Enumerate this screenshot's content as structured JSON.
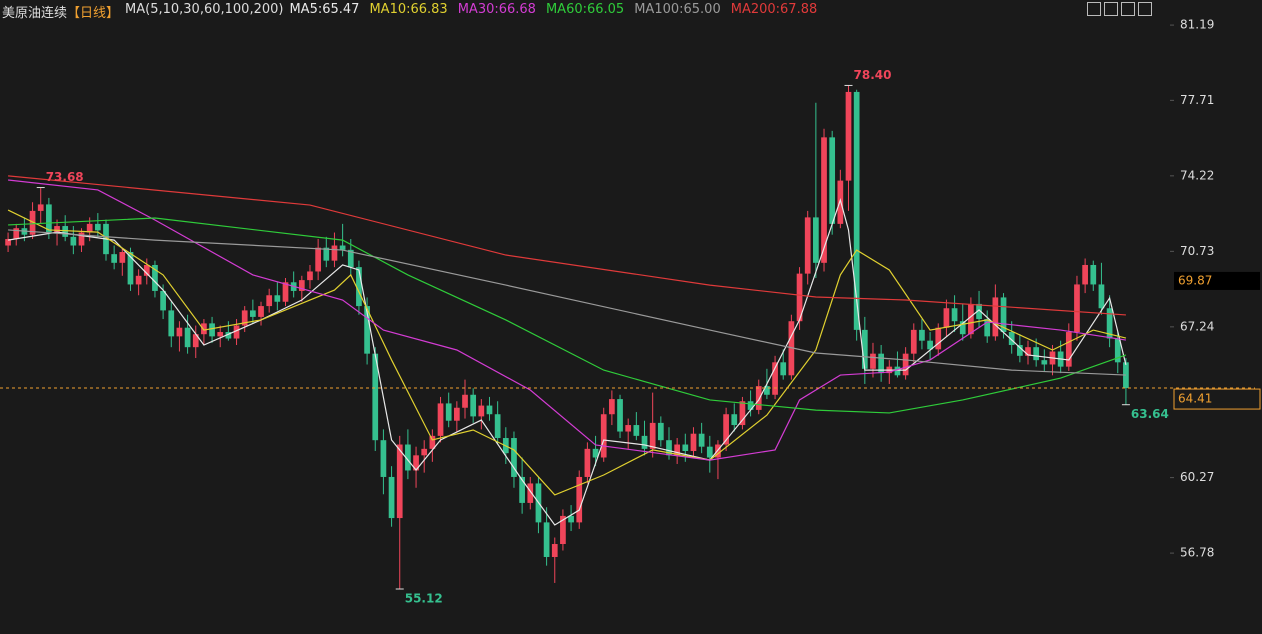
{
  "header": {
    "title": "美原油连续",
    "period": "【日线】",
    "ma_params": "MA(5,10,30,60,100,200)"
  },
  "chart_data": {
    "type": "candlestick",
    "up_color": "#f0455a",
    "down_color": "#35c08f",
    "ylim": [
      53.04,
      82.35
    ],
    "yticks": [
      81.19,
      77.71,
      74.22,
      70.73,
      67.24,
      60.27,
      56.78
    ],
    "crosshair_price": 69.87,
    "last_price": 64.41,
    "ohlc": [
      [
        71.0,
        71.6,
        70.7,
        71.3
      ],
      [
        71.3,
        72.0,
        71.0,
        71.8
      ],
      [
        71.8,
        72.3,
        71.2,
        71.5
      ],
      [
        71.5,
        73.0,
        71.3,
        72.6
      ],
      [
        72.6,
        73.68,
        72.0,
        72.9
      ],
      [
        72.9,
        73.2,
        71.3,
        71.6
      ],
      [
        71.6,
        72.2,
        71.0,
        71.9
      ],
      [
        71.9,
        72.4,
        71.2,
        71.4
      ],
      [
        71.4,
        71.9,
        70.6,
        71.0
      ],
      [
        71.0,
        71.8,
        70.7,
        71.6
      ],
      [
        71.6,
        72.3,
        71.2,
        72.0
      ],
      [
        72.0,
        72.5,
        71.4,
        71.7
      ],
      [
        72.0,
        72.2,
        70.3,
        70.6
      ],
      [
        70.6,
        71.0,
        69.9,
        70.2
      ],
      [
        70.2,
        70.9,
        69.6,
        70.7
      ],
      [
        70.7,
        70.9,
        68.9,
        69.2
      ],
      [
        69.2,
        69.9,
        68.7,
        69.6
      ],
      [
        69.6,
        70.4,
        69.2,
        70.1
      ],
      [
        70.1,
        70.3,
        68.6,
        68.9
      ],
      [
        68.9,
        69.2,
        67.6,
        68.0
      ],
      [
        68.0,
        68.4,
        66.3,
        66.8
      ],
      [
        66.8,
        67.5,
        66.1,
        67.2
      ],
      [
        67.2,
        67.8,
        66.0,
        66.3
      ],
      [
        66.3,
        67.3,
        65.8,
        66.9
      ],
      [
        66.9,
        67.6,
        66.4,
        67.4
      ],
      [
        67.4,
        67.7,
        66.5,
        66.8
      ],
      [
        66.8,
        67.3,
        66.3,
        67.0
      ],
      [
        67.0,
        67.5,
        66.6,
        66.7
      ],
      [
        66.7,
        67.6,
        66.4,
        67.3
      ],
      [
        67.3,
        68.2,
        67.0,
        68.0
      ],
      [
        68.0,
        68.5,
        67.4,
        67.7
      ],
      [
        67.7,
        68.4,
        67.3,
        68.2
      ],
      [
        68.2,
        69.0,
        67.9,
        68.7
      ],
      [
        68.7,
        69.3,
        68.0,
        68.4
      ],
      [
        68.4,
        69.5,
        68.2,
        69.3
      ],
      [
        69.3,
        69.8,
        68.6,
        68.9
      ],
      [
        68.9,
        69.6,
        68.4,
        69.4
      ],
      [
        69.4,
        70.1,
        69.0,
        69.8
      ],
      [
        69.8,
        71.3,
        69.4,
        70.9
      ],
      [
        70.9,
        71.4,
        70.0,
        70.3
      ],
      [
        70.3,
        71.6,
        70.0,
        71.0
      ],
      [
        71.0,
        72.0,
        70.5,
        70.8
      ],
      [
        70.8,
        71.3,
        69.6,
        70.0
      ],
      [
        70.0,
        70.3,
        67.8,
        68.2
      ],
      [
        68.2,
        68.6,
        65.5,
        66.0
      ],
      [
        66.0,
        66.3,
        61.5,
        62.0
      ],
      [
        62.0,
        62.5,
        59.5,
        60.3
      ],
      [
        60.3,
        60.8,
        58.0,
        58.4
      ],
      [
        58.4,
        62.2,
        55.12,
        61.8
      ],
      [
        61.8,
        62.5,
        60.2,
        60.6
      ],
      [
        60.6,
        61.7,
        59.8,
        61.3
      ],
      [
        61.3,
        62.0,
        60.5,
        61.6
      ],
      [
        61.6,
        62.5,
        61.0,
        62.2
      ],
      [
        62.2,
        64.0,
        61.9,
        63.7
      ],
      [
        63.7,
        64.2,
        62.6,
        62.9
      ],
      [
        62.9,
        63.8,
        62.4,
        63.5
      ],
      [
        63.5,
        64.8,
        63.0,
        64.1
      ],
      [
        64.1,
        64.4,
        62.8,
        63.1
      ],
      [
        63.1,
        63.9,
        62.5,
        63.6
      ],
      [
        63.6,
        64.0,
        62.9,
        63.2
      ],
      [
        63.2,
        63.8,
        61.8,
        62.1
      ],
      [
        62.1,
        62.6,
        60.9,
        61.4
      ],
      [
        62.1,
        62.4,
        59.8,
        60.3
      ],
      [
        60.3,
        61.2,
        58.6,
        59.1
      ],
      [
        59.1,
        60.3,
        58.8,
        60.0
      ],
      [
        60.0,
        60.3,
        57.7,
        58.2
      ],
      [
        58.2,
        58.9,
        56.2,
        56.6
      ],
      [
        56.6,
        57.5,
        55.4,
        57.2
      ],
      [
        57.2,
        58.8,
        56.9,
        58.5
      ],
      [
        58.5,
        59.0,
        57.8,
        58.2
      ],
      [
        58.2,
        60.6,
        57.9,
        60.3
      ],
      [
        60.3,
        61.9,
        60.0,
        61.6
      ],
      [
        61.6,
        62.2,
        60.8,
        61.2
      ],
      [
        61.2,
        63.5,
        61.0,
        63.2
      ],
      [
        63.2,
        64.3,
        62.7,
        63.9
      ],
      [
        63.9,
        64.1,
        62.1,
        62.4
      ],
      [
        62.4,
        63.0,
        61.6,
        62.7
      ],
      [
        62.7,
        63.3,
        62.0,
        62.2
      ],
      [
        62.2,
        62.9,
        61.3,
        61.6
      ],
      [
        61.6,
        64.2,
        61.2,
        62.8
      ],
      [
        62.8,
        63.1,
        61.7,
        62.0
      ],
      [
        62.0,
        62.6,
        61.1,
        61.3
      ],
      [
        61.3,
        62.1,
        60.9,
        61.8
      ],
      [
        61.8,
        62.3,
        61.0,
        61.5
      ],
      [
        61.5,
        62.6,
        61.2,
        62.3
      ],
      [
        62.3,
        62.8,
        61.4,
        61.7
      ],
      [
        61.7,
        62.2,
        60.5,
        61.2
      ],
      [
        61.2,
        62.0,
        60.2,
        61.8
      ],
      [
        61.8,
        63.5,
        61.5,
        63.2
      ],
      [
        63.2,
        63.7,
        62.4,
        62.7
      ],
      [
        62.7,
        64.0,
        62.5,
        63.8
      ],
      [
        63.8,
        64.3,
        63.1,
        63.4
      ],
      [
        63.4,
        64.8,
        63.2,
        64.5
      ],
      [
        64.5,
        65.3,
        63.9,
        64.1
      ],
      [
        64.1,
        65.9,
        63.9,
        65.6
      ],
      [
        65.6,
        66.2,
        64.8,
        65.0
      ],
      [
        65.0,
        67.8,
        64.8,
        67.5
      ],
      [
        67.5,
        70.0,
        67.1,
        69.7
      ],
      [
        69.7,
        72.6,
        69.2,
        72.3
      ],
      [
        72.3,
        77.6,
        69.5,
        70.2
      ],
      [
        70.2,
        76.4,
        69.8,
        76.0
      ],
      [
        76.0,
        76.3,
        71.5,
        72.0
      ],
      [
        72.0,
        74.5,
        71.8,
        74.0
      ],
      [
        74.0,
        78.4,
        72.6,
        78.1
      ],
      [
        78.1,
        78.2,
        66.6,
        67.1
      ],
      [
        67.1,
        67.7,
        64.6,
        65.3
      ],
      [
        65.3,
        66.5,
        64.9,
        66.0
      ],
      [
        66.0,
        66.4,
        64.7,
        65.1
      ],
      [
        65.1,
        65.7,
        64.6,
        65.4
      ],
      [
        65.4,
        66.1,
        64.9,
        65.0
      ],
      [
        65.0,
        66.3,
        64.8,
        66.0
      ],
      [
        66.0,
        67.4,
        65.6,
        67.1
      ],
      [
        67.1,
        67.6,
        66.2,
        66.6
      ],
      [
        66.6,
        67.0,
        65.7,
        66.2
      ],
      [
        66.2,
        67.4,
        65.9,
        67.2
      ],
      [
        67.2,
        68.5,
        66.8,
        68.1
      ],
      [
        68.1,
        68.7,
        67.0,
        67.5
      ],
      [
        67.5,
        68.3,
        66.6,
        66.9
      ],
      [
        66.9,
        68.6,
        66.7,
        68.3
      ],
      [
        68.3,
        68.9,
        67.2,
        67.6
      ],
      [
        67.6,
        68.0,
        66.5,
        66.8
      ],
      [
        66.8,
        69.2,
        66.6,
        68.6
      ],
      [
        68.6,
        68.8,
        66.7,
        67.0
      ],
      [
        67.0,
        67.5,
        66.0,
        66.4
      ],
      [
        66.4,
        66.9,
        65.6,
        65.9
      ],
      [
        65.9,
        66.6,
        65.5,
        66.3
      ],
      [
        66.3,
        66.7,
        65.4,
        65.7
      ],
      [
        65.7,
        66.2,
        65.2,
        65.5
      ],
      [
        65.5,
        66.4,
        65.0,
        66.1
      ],
      [
        66.1,
        66.6,
        65.1,
        65.4
      ],
      [
        65.4,
        67.4,
        65.2,
        67.0
      ],
      [
        67.0,
        69.6,
        66.6,
        69.2
      ],
      [
        69.2,
        70.4,
        68.8,
        70.1
      ],
      [
        70.1,
        70.3,
        68.9,
        69.2
      ],
      [
        69.2,
        70.2,
        67.8,
        68.1
      ],
      [
        68.1,
        68.7,
        66.3,
        66.7
      ],
      [
        66.7,
        67.0,
        65.1,
        65.6
      ],
      [
        65.6,
        65.8,
        63.64,
        64.41
      ]
    ],
    "series": [
      {
        "name": "MA5:65.47",
        "color": "#e8e8e8",
        "x": [
          0,
          6,
          13,
          19,
          24,
          31,
          36,
          41,
          43,
          47,
          50,
          53,
          58,
          63,
          67,
          70,
          73,
          78,
          86,
          92,
          97,
          102,
          103,
          105,
          110,
          116,
          119,
          125,
          130,
          135,
          137
        ],
        "values": [
          71.25,
          71.62,
          71.25,
          68.94,
          66.4,
          67.56,
          68.48,
          70.1,
          69.87,
          62.01,
          60.62,
          62.01,
          62.93,
          60.16,
          58.08,
          58.77,
          62.01,
          61.78,
          61.08,
          63.86,
          67.56,
          73.1,
          71.72,
          65.24,
          65.24,
          67.09,
          68.02,
          65.94,
          65.71,
          68.57,
          65.48
        ]
      },
      {
        "name": "MA10:66.83",
        "color": "#e0d030",
        "x": [
          0,
          5,
          11,
          19,
          24,
          31,
          40,
          42,
          47,
          52,
          57,
          62,
          67,
          73,
          79,
          86,
          93,
          99,
          102,
          104,
          108,
          113,
          120,
          128,
          133,
          137
        ],
        "values": [
          72.64,
          71.72,
          71.62,
          69.64,
          67.09,
          67.56,
          68.94,
          69.64,
          65.71,
          62.01,
          62.47,
          61.55,
          59.47,
          60.39,
          61.55,
          61.08,
          63.16,
          66.17,
          69.64,
          70.79,
          69.87,
          67.09,
          67.56,
          66.17,
          67.09,
          66.72
        ]
      },
      {
        "name": "MA30:66.68",
        "color": "#d33cd3",
        "x": [
          0,
          11,
          18,
          30,
          41,
          46,
          55,
          64,
          72,
          86,
          94,
          97,
          102,
          108,
          113,
          120,
          129,
          137
        ],
        "values": [
          74.03,
          73.57,
          72.18,
          69.64,
          68.48,
          67.09,
          66.17,
          64.32,
          61.78,
          61.08,
          61.55,
          63.86,
          65.01,
          65.15,
          65.71,
          67.46,
          67.09,
          66.63
        ]
      },
      {
        "name": "MA60:66.05",
        "color": "#2fcc3a",
        "x": [
          0,
          18,
          41,
          49,
          61,
          73,
          86,
          99,
          108,
          117,
          129,
          137
        ],
        "values": [
          71.95,
          72.27,
          71.25,
          69.64,
          67.56,
          65.24,
          63.86,
          63.39,
          63.26,
          63.86,
          64.87,
          65.94
        ]
      },
      {
        "name": "MA100:65.00",
        "color": "#9a9a9a",
        "x": [
          0,
          18,
          41,
          61,
          86,
          99,
          110,
          123,
          137
        ],
        "values": [
          71.72,
          71.25,
          70.79,
          69.17,
          67.09,
          66.03,
          65.71,
          65.24,
          65.01
        ]
      },
      {
        "name": "MA200:67.88",
        "color": "#e03a3a",
        "x": [
          0,
          37,
          61,
          86,
          99,
          110,
          137
        ],
        "values": [
          74.22,
          72.87,
          70.56,
          69.17,
          68.62,
          68.48,
          67.79
        ]
      }
    ],
    "annotations": [
      {
        "label": "73.68",
        "value": 73.68
      },
      {
        "label": "78.40",
        "value": 78.4
      },
      {
        "label": "55.12",
        "value": 55.12
      },
      {
        "label": "63.64",
        "value": 63.64
      }
    ]
  }
}
